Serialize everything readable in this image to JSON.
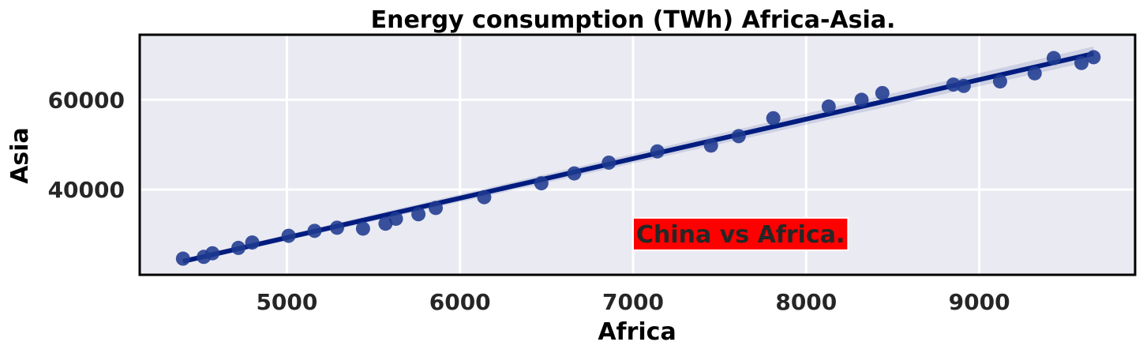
{
  "chart_data": {
    "type": "scatter",
    "title": "Energy consumption (TWh)  Africa-Asia.",
    "xlabel": "Africa",
    "ylabel": "Asia",
    "xlim": [
      4150,
      9900
    ],
    "ylim": [
      21000,
      74500
    ],
    "xticks": [
      5000,
      6000,
      7000,
      8000,
      9000
    ],
    "yticks": [
      40000,
      60000
    ],
    "grid": true,
    "point_color": "#1f3a8f",
    "line_color": "#001c7f",
    "background": "#eaeaf2",
    "annotation": {
      "text": "China vs Africa.",
      "x": 7000,
      "y": 30000,
      "box_color": "#ff0000"
    },
    "regression": {
      "x": [
        4400,
        9660
      ],
      "y": [
        24000,
        70300
      ]
    },
    "points": [
      {
        "x": 4400,
        "y": 24600
      },
      {
        "x": 4520,
        "y": 25000
      },
      {
        "x": 4570,
        "y": 25800
      },
      {
        "x": 4720,
        "y": 27000
      },
      {
        "x": 4800,
        "y": 28200
      },
      {
        "x": 5010,
        "y": 29700
      },
      {
        "x": 5160,
        "y": 30800
      },
      {
        "x": 5290,
        "y": 31500
      },
      {
        "x": 5440,
        "y": 31300
      },
      {
        "x": 5570,
        "y": 32400
      },
      {
        "x": 5630,
        "y": 33500
      },
      {
        "x": 5760,
        "y": 34500
      },
      {
        "x": 5860,
        "y": 35900
      },
      {
        "x": 6140,
        "y": 38300
      },
      {
        "x": 6470,
        "y": 41400
      },
      {
        "x": 6660,
        "y": 43600
      },
      {
        "x": 6860,
        "y": 46000
      },
      {
        "x": 7140,
        "y": 48500
      },
      {
        "x": 7450,
        "y": 49800
      },
      {
        "x": 7610,
        "y": 51900
      },
      {
        "x": 7810,
        "y": 55900
      },
      {
        "x": 8130,
        "y": 58500
      },
      {
        "x": 8320,
        "y": 60000
      },
      {
        "x": 8440,
        "y": 61500
      },
      {
        "x": 8850,
        "y": 63400
      },
      {
        "x": 8910,
        "y": 63100
      },
      {
        "x": 9120,
        "y": 64100
      },
      {
        "x": 9320,
        "y": 65900
      },
      {
        "x": 9430,
        "y": 69300
      },
      {
        "x": 9590,
        "y": 68200
      },
      {
        "x": 9660,
        "y": 69500
      }
    ]
  }
}
